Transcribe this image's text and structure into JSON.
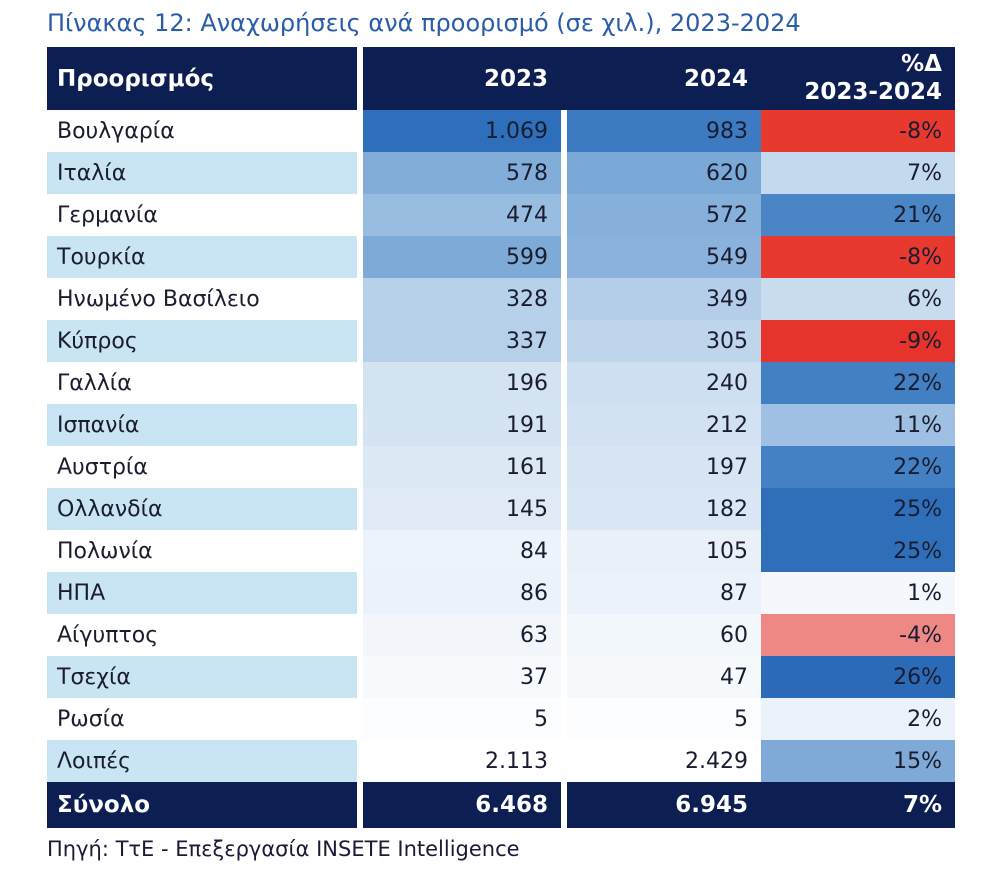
{
  "title": "Πίνακας 12: Αναχωρήσεις ανά προορισμό (σε χιλ.), 2023-2024",
  "table": {
    "headers": {
      "destination": "Προορισμός",
      "y2023": "2023",
      "y2024": "2024",
      "delta_line1": "%Δ",
      "delta_line2": "2023-2024"
    },
    "rows": [
      {
        "label": "Βουλγαρία",
        "v2023": "1.069",
        "bg2023": "#2e6fbc",
        "v2024": "983",
        "bg2024": "#3c7bc1",
        "delta": "-8%",
        "bg_delta": "#e8392f"
      },
      {
        "label": "Ιταλία",
        "v2023": "578",
        "bg2023": "#83add9",
        "v2024": "620",
        "bg2024": "#7ba9d7",
        "delta": "7%",
        "bg_delta": "#c3d9ee"
      },
      {
        "label": "Γερμανία",
        "v2023": "474",
        "bg2023": "#99bde0",
        "v2024": "572",
        "bg2024": "#86b0da",
        "delta": "21%",
        "bg_delta": "#4a85c6"
      },
      {
        "label": "Τουρκία",
        "v2023": "599",
        "bg2023": "#7eaad7",
        "v2024": "549",
        "bg2024": "#8ab2dc",
        "delta": "-8%",
        "bg_delta": "#e8392f"
      },
      {
        "label": "Ηνωμένο Βασίλειο",
        "v2023": "328",
        "bg2023": "#b8d1ea",
        "v2024": "349",
        "bg2024": "#b4cee9",
        "delta": "6%",
        "bg_delta": "#c9dcef"
      },
      {
        "label": "Κύπρος",
        "v2023": "337",
        "bg2023": "#b6d0e9",
        "v2024": "305",
        "bg2024": "#bed5ec",
        "delta": "-9%",
        "bg_delta": "#e6332b"
      },
      {
        "label": "Γαλλία",
        "v2023": "196",
        "bg2023": "#d4e3f2",
        "v2024": "240",
        "bg2024": "#cddff1",
        "delta": "22%",
        "bg_delta": "#4380c3"
      },
      {
        "label": "Ισπανία",
        "v2023": "191",
        "bg2023": "#d5e4f3",
        "v2024": "212",
        "bg2024": "#d2e2f2",
        "delta": "11%",
        "bg_delta": "#9fc0e3"
      },
      {
        "label": "Αυστρία",
        "v2023": "161",
        "bg2023": "#dce8f4",
        "v2024": "197",
        "bg2024": "#d6e4f3",
        "delta": "22%",
        "bg_delta": "#4381c4"
      },
      {
        "label": "Ολλανδία",
        "v2023": "145",
        "bg2023": "#dfeaf6",
        "v2024": "182",
        "bg2024": "#d9e6f4",
        "delta": "25%",
        "bg_delta": "#2f6fb9"
      },
      {
        "label": "Πολωνία",
        "v2023": "84",
        "bg2023": "#edf3fa",
        "v2024": "105",
        "bg2024": "#e9f0f8",
        "delta": "25%",
        "bg_delta": "#2f6fb9"
      },
      {
        "label": "ΗΠΑ",
        "v2023": "86",
        "bg2023": "#ecf2f9",
        "v2024": "87",
        "bg2024": "#ecf2f9",
        "delta": "1%",
        "bg_delta": "#f4f8fc"
      },
      {
        "label": "Αίγυπτος",
        "v2023": "63",
        "bg2023": "#f2f6fb",
        "v2024": "60",
        "bg2024": "#f2f7fb",
        "delta": "-4%",
        "bg_delta": "#ee8885"
      },
      {
        "label": "Τσεχία",
        "v2023": "37",
        "bg2023": "#f7fafd",
        "v2024": "47",
        "bg2024": "#f5f9fc",
        "delta": "26%",
        "bg_delta": "#2b6ab6"
      },
      {
        "label": "Ρωσία",
        "v2023": "5",
        "bg2023": "#fcfdfe",
        "v2024": "5",
        "bg2024": "#fcfdfe",
        "delta": "2%",
        "bg_delta": "#ebf2f9"
      },
      {
        "label": "Λοιπές",
        "v2023": "2.113",
        "bg2023": "#ffffff",
        "v2024": "2.429",
        "bg2024": "#ffffff",
        "delta": "15%",
        "bg_delta": "#7fa9d6"
      }
    ],
    "total": {
      "label": "Σύνολο",
      "v2023": "6.468",
      "v2024": "6.945",
      "delta": "7%"
    }
  },
  "source": "Πηγή: ΤτΕ - Επεξεργασία INSETE Intelligence",
  "colors": {
    "header_bg": "#0c1e52",
    "total_bg": "#0c1e52",
    "zebra_row_bg": "#c9e4f2",
    "title_text": "#2b5ca9",
    "body_text": "#1a1c30",
    "header_text": "#ffffff",
    "negative_strong": "#e6332b",
    "negative_soft": "#ee8885",
    "positive_strong": "#2b6ab6",
    "heatmap_max_blue": "#2e6fbc"
  }
}
